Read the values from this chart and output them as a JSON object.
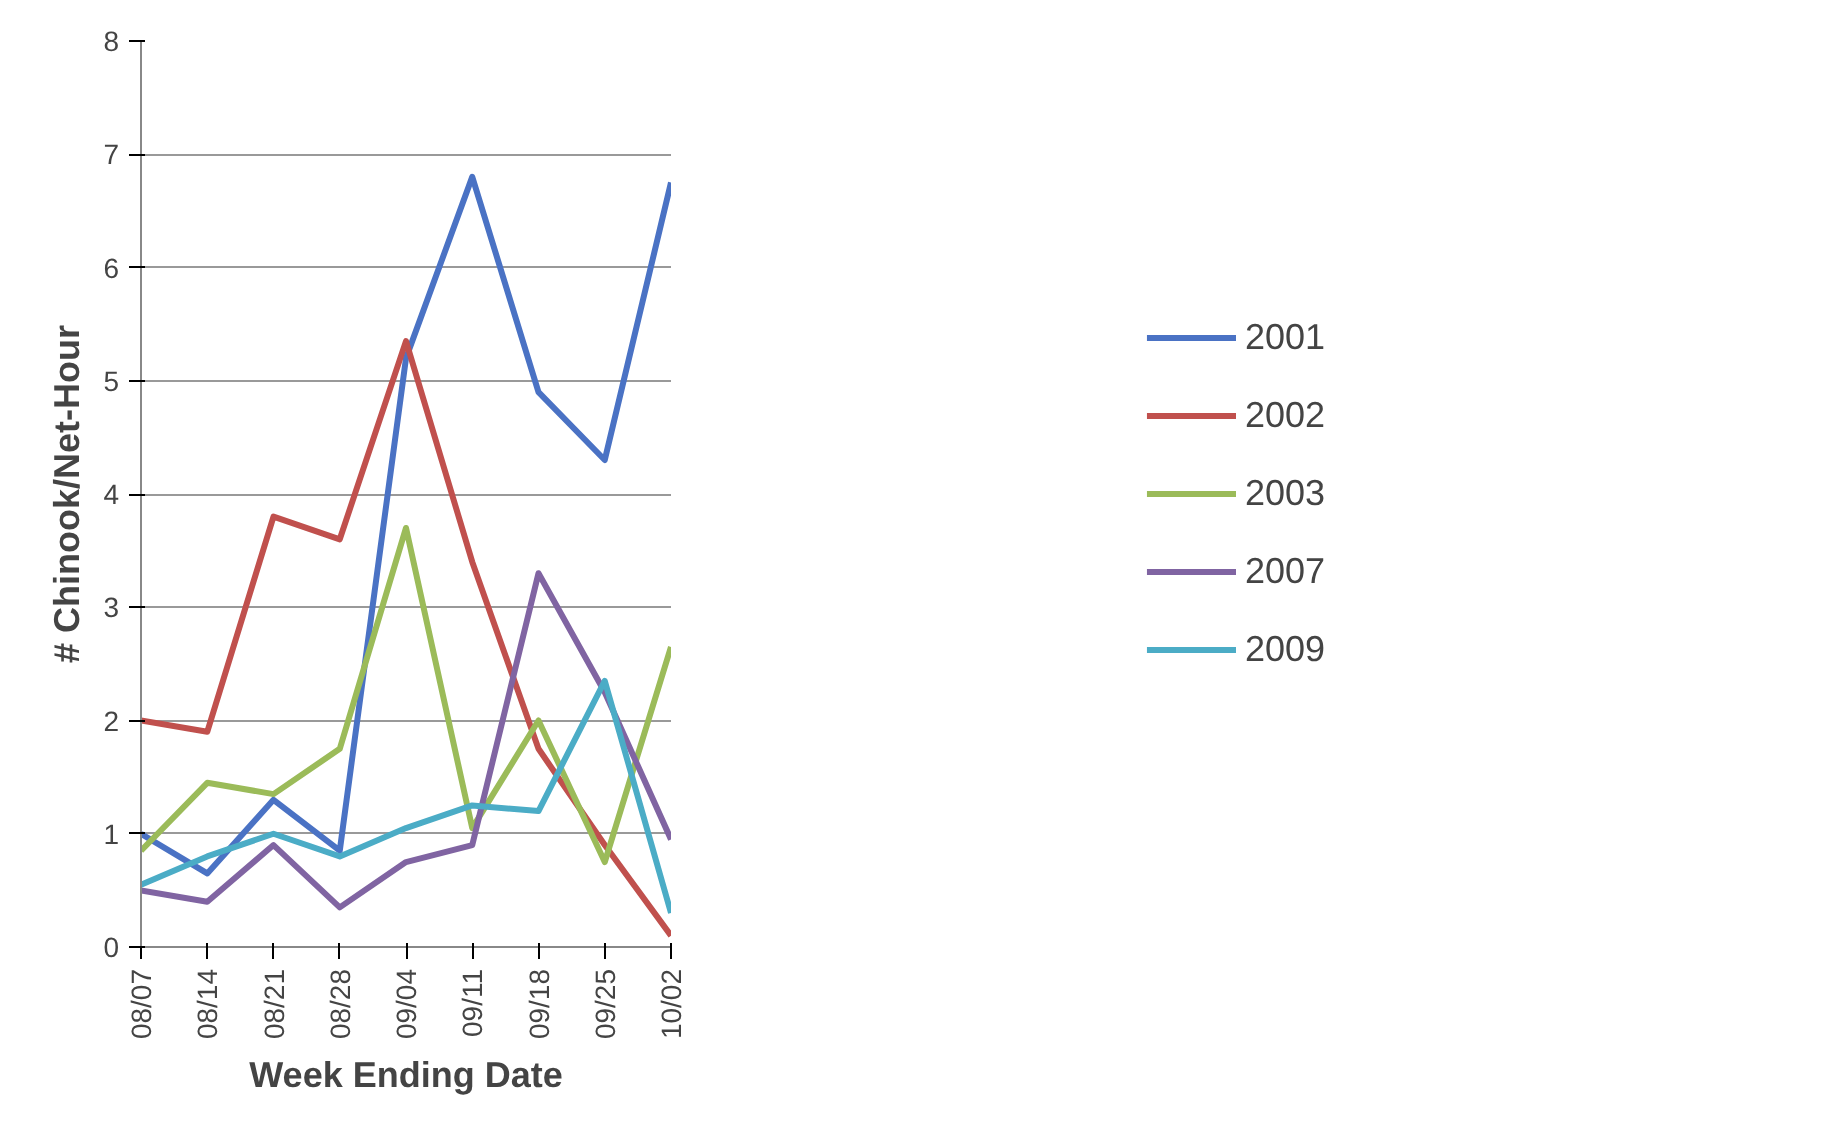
{
  "chart_data": {
    "type": "line",
    "xlabel": "Week Ending Date",
    "ylabel": "# Chinook/Net-Hour",
    "categories": [
      "08/07",
      "08/14",
      "08/21",
      "08/28",
      "09/04",
      "09/11",
      "09/18",
      "09/25",
      "10/02"
    ],
    "series": [
      {
        "name": "2001",
        "color": "#4a72c4",
        "values": [
          1.0,
          0.65,
          1.3,
          0.85,
          5.2,
          6.8,
          4.9,
          4.3,
          6.75
        ]
      },
      {
        "name": "2002",
        "color": "#c0504d",
        "values": [
          2.0,
          1.9,
          3.8,
          3.6,
          5.35,
          3.4,
          1.75,
          0.9,
          0.1
        ]
      },
      {
        "name": "2003",
        "color": "#9bbb59",
        "values": [
          0.85,
          1.45,
          1.35,
          1.75,
          3.7,
          1.05,
          2.0,
          0.75,
          2.65
        ]
      },
      {
        "name": "2007",
        "color": "#8064a2",
        "values": [
          0.5,
          0.4,
          0.9,
          0.35,
          0.75,
          0.9,
          3.3,
          2.25,
          0.95
        ]
      },
      {
        "name": "2009",
        "color": "#4bacc6",
        "values": [
          0.55,
          0.8,
          1.0,
          0.8,
          1.05,
          1.25,
          1.2,
          2.35,
          0.3
        ]
      }
    ],
    "ylim": [
      0,
      8
    ],
    "yticks": [
      0,
      1,
      2,
      3,
      4,
      5,
      6,
      7,
      8
    ],
    "grid": "y",
    "legend": "right",
    "marker": "none",
    "line_style": "solid"
  }
}
